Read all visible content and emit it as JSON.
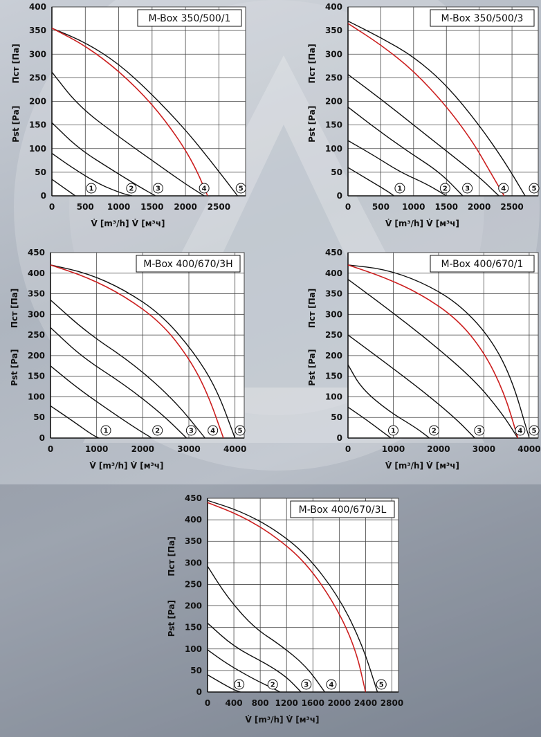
{
  "colors": {
    "curve": "#111111",
    "highlight_curve": "#cc1f1f",
    "plot_bg": "#ffffff",
    "grid": "#444444"
  },
  "chart_data": [
    {
      "type": "line",
      "title": "M-Box 350/500/1",
      "x_ticks": [
        "0",
        "500",
        "1000",
        "1500",
        "2000",
        "2500"
      ],
      "y_ticks": [
        "0",
        "50",
        "100",
        "150",
        "200",
        "250",
        "300",
        "350",
        "400"
      ],
      "xlabel": "V̇ [m³/h]  V̇ [м³ч]",
      "ylabel_left": "Pst [Pa]",
      "ylabel_right": "Пст [Па]",
      "xlim": [
        0,
        2900
      ],
      "ylim": [
        0,
        400
      ],
      "series": [
        {
          "name": "1",
          "points": [
            [
              0,
              35
            ],
            [
              350,
              0
            ]
          ]
        },
        {
          "name": "2",
          "points": [
            [
              0,
              90
            ],
            [
              300,
              60
            ],
            [
              700,
              25
            ],
            [
              1050,
              5
            ],
            [
              1200,
              0
            ]
          ]
        },
        {
          "name": "3",
          "points": [
            [
              0,
              155
            ],
            [
              400,
              100
            ],
            [
              900,
              55
            ],
            [
              1300,
              20
            ],
            [
              1550,
              0
            ]
          ]
        },
        {
          "name": "4",
          "points": [
            [
              0,
              262
            ],
            [
              400,
              190
            ],
            [
              1000,
              125
            ],
            [
              1600,
              65
            ],
            [
              2000,
              25
            ],
            [
              2280,
              0
            ]
          ]
        },
        {
          "name": "5",
          "points": [
            [
              0,
              355
            ],
            [
              500,
              325
            ],
            [
              1000,
              280
            ],
            [
              1500,
              215
            ],
            [
              2000,
              140
            ],
            [
              2400,
              70
            ],
            [
              2780,
              0
            ]
          ]
        },
        {
          "name": "",
          "highlight": true,
          "points": [
            [
              0,
              355
            ],
            [
              500,
              318
            ],
            [
              1000,
              265
            ],
            [
              1500,
              195
            ],
            [
              1900,
              120
            ],
            [
              2150,
              60
            ],
            [
              2330,
              0
            ]
          ]
        }
      ],
      "curve_labels": [
        {
          "n": "1",
          "x": 590
        },
        {
          "n": "2",
          "x": 1190
        },
        {
          "n": "3",
          "x": 1590
        },
        {
          "n": "4",
          "x": 2280
        },
        {
          "n": "5",
          "x": 2830
        }
      ]
    },
    {
      "type": "line",
      "title": "M-Box 350/500/3",
      "x_ticks": [
        "0",
        "500",
        "1000",
        "1500",
        "2000",
        "2500"
      ],
      "y_ticks": [
        "0",
        "50",
        "100",
        "150",
        "200",
        "250",
        "300",
        "350",
        "400"
      ],
      "xlabel": "V̇ [m³/h]  V̇ [м³ч]",
      "ylabel_left": "Pst [Pa]",
      "ylabel_right": "Пст [Па]",
      "xlim": [
        0,
        2900
      ],
      "ylim": [
        0,
        400
      ],
      "series": [
        {
          "name": "1",
          "points": [
            [
              0,
              60
            ],
            [
              300,
              35
            ],
            [
              600,
              10
            ],
            [
              700,
              0
            ]
          ]
        },
        {
          "name": "2",
          "points": [
            [
              0,
              117
            ],
            [
              400,
              85
            ],
            [
              800,
              50
            ],
            [
              1200,
              25
            ],
            [
              1500,
              0
            ]
          ]
        },
        {
          "name": "3",
          "points": [
            [
              0,
              188
            ],
            [
              400,
              145
            ],
            [
              900,
              95
            ],
            [
              1400,
              50
            ],
            [
              1750,
              0
            ]
          ]
        },
        {
          "name": "4",
          "points": [
            [
              0,
              257
            ],
            [
              500,
              205
            ],
            [
              1000,
              150
            ],
            [
              1500,
              95
            ],
            [
              2000,
              40
            ],
            [
              2300,
              0
            ]
          ]
        },
        {
          "name": "5",
          "points": [
            [
              0,
              370
            ],
            [
              500,
              335
            ],
            [
              1000,
              295
            ],
            [
              1500,
              235
            ],
            [
              2000,
              150
            ],
            [
              2400,
              70
            ],
            [
              2700,
              0
            ]
          ]
        },
        {
          "name": "",
          "highlight": true,
          "points": [
            [
              0,
              365
            ],
            [
              500,
              320
            ],
            [
              1000,
              265
            ],
            [
              1500,
              190
            ],
            [
              1900,
              115
            ],
            [
              2150,
              55
            ],
            [
              2380,
              0
            ]
          ]
        }
      ],
      "curve_labels": [
        {
          "n": "1",
          "x": 790
        },
        {
          "n": "2",
          "x": 1480
        },
        {
          "n": "3",
          "x": 1820
        },
        {
          "n": "4",
          "x": 2370
        },
        {
          "n": "5",
          "x": 2850
        }
      ]
    },
    {
      "type": "line",
      "title": "M-Box 400/670/3H",
      "x_ticks": [
        "0",
        "1000",
        "2000",
        "3000",
        "4000"
      ],
      "y_ticks": [
        "0",
        "50",
        "100",
        "150",
        "200",
        "250",
        "300",
        "350",
        "400",
        "450"
      ],
      "xlabel": "V̇ [m³/h]  V̇ [м³ч]",
      "ylabel_left": "Pst [Pa]",
      "ylabel_right": "Пст [Па]",
      "xlim": [
        0,
        4200
      ],
      "ylim": [
        0,
        450
      ],
      "series": [
        {
          "name": "1",
          "points": [
            [
              0,
              78
            ],
            [
              500,
              40
            ],
            [
              900,
              8
            ],
            [
              1050,
              0
            ]
          ]
        },
        {
          "name": "2",
          "points": [
            [
              0,
              175
            ],
            [
              600,
              120
            ],
            [
              1300,
              65
            ],
            [
              1900,
              20
            ],
            [
              2200,
              0
            ]
          ]
        },
        {
          "name": "3",
          "points": [
            [
              0,
              268
            ],
            [
              700,
              195
            ],
            [
              1600,
              130
            ],
            [
              2400,
              60
            ],
            [
              2950,
              0
            ]
          ]
        },
        {
          "name": "4",
          "points": [
            [
              0,
              335
            ],
            [
              800,
              255
            ],
            [
              1800,
              180
            ],
            [
              2700,
              90
            ],
            [
              3350,
              0
            ]
          ]
        },
        {
          "name": "5",
          "points": [
            [
              0,
              420
            ],
            [
              800,
              400
            ],
            [
              1600,
              360
            ],
            [
              2400,
              300
            ],
            [
              3100,
              210
            ],
            [
              3600,
              120
            ],
            [
              4000,
              0
            ]
          ]
        },
        {
          "name": "",
          "highlight": true,
          "points": [
            [
              0,
              420
            ],
            [
              800,
              390
            ],
            [
              1600,
              345
            ],
            [
              2400,
              280
            ],
            [
              3000,
              195
            ],
            [
              3400,
              110
            ],
            [
              3750,
              0
            ]
          ]
        }
      ],
      "curve_labels": [
        {
          "n": "1",
          "x": 1200
        },
        {
          "n": "2",
          "x": 2320
        },
        {
          "n": "3",
          "x": 3050
        },
        {
          "n": "4",
          "x": 3520
        },
        {
          "n": "5",
          "x": 4170
        }
      ]
    },
    {
      "type": "line",
      "title": "M-Box 400/670/1",
      "x_ticks": [
        "0",
        "1000",
        "2000",
        "3000",
        "4000"
      ],
      "y_ticks": [
        "0",
        "50",
        "100",
        "150",
        "200",
        "250",
        "300",
        "350",
        "400",
        "450"
      ],
      "xlabel": "V̇ [m³/h]  V̇ [м³ч]",
      "ylabel_left": "Pst [Pa]",
      "ylabel_right": "Пст [Па]",
      "xlim": [
        0,
        4200
      ],
      "ylim": [
        0,
        450
      ],
      "series": [
        {
          "name": "1",
          "points": [
            [
              0,
              75
            ],
            [
              400,
              45
            ],
            [
              800,
              12
            ],
            [
              950,
              0
            ]
          ]
        },
        {
          "name": "2",
          "points": [
            [
              0,
              178
            ],
            [
              300,
              120
            ],
            [
              900,
              65
            ],
            [
              1500,
              25
            ],
            [
              1800,
              0
            ]
          ]
        },
        {
          "name": "3",
          "points": [
            [
              0,
              250
            ],
            [
              800,
              185
            ],
            [
              1700,
              110
            ],
            [
              2400,
              45
            ],
            [
              2800,
              0
            ]
          ]
        },
        {
          "name": "4",
          "points": [
            [
              0,
              385
            ],
            [
              800,
              320
            ],
            [
              1800,
              235
            ],
            [
              2800,
              140
            ],
            [
              3400,
              60
            ],
            [
              3750,
              0
            ]
          ]
        },
        {
          "name": "5",
          "points": [
            [
              0,
              420
            ],
            [
              800,
              410
            ],
            [
              1600,
              380
            ],
            [
              2400,
              330
            ],
            [
              3100,
              250
            ],
            [
              3600,
              150
            ],
            [
              4000,
              0
            ]
          ]
        },
        {
          "name": "",
          "highlight": true,
          "points": [
            [
              0,
              420
            ],
            [
              800,
              390
            ],
            [
              1600,
              350
            ],
            [
              2400,
              290
            ],
            [
              3000,
              210
            ],
            [
              3450,
              110
            ],
            [
              3750,
              0
            ]
          ]
        }
      ],
      "curve_labels": [
        {
          "n": "1",
          "x": 1000
        },
        {
          "n": "2",
          "x": 1900
        },
        {
          "n": "3",
          "x": 2900
        },
        {
          "n": "4",
          "x": 3800
        },
        {
          "n": "5",
          "x": 4200
        }
      ]
    },
    {
      "type": "line",
      "title": "M-Box 400/670/3L",
      "x_ticks": [
        "0",
        "400",
        "800",
        "1200",
        "1600",
        "2000",
        "2400",
        "2800"
      ],
      "y_ticks": [
        "0",
        "50",
        "100",
        "150",
        "200",
        "250",
        "300",
        "350",
        "400",
        "450"
      ],
      "xlabel": "V̇ [m³/h]  V̇ [м³ч]",
      "ylabel_left": "Pst [Pa]",
      "ylabel_right": "Пст [Па]",
      "xlim": [
        0,
        2900
      ],
      "ylim": [
        0,
        450
      ],
      "series": [
        {
          "name": "1",
          "points": [
            [
              0,
              40
            ],
            [
              200,
              22
            ],
            [
              400,
              5
            ],
            [
              500,
              0
            ]
          ]
        },
        {
          "name": "2",
          "points": [
            [
              0,
              98
            ],
            [
              300,
              65
            ],
            [
              700,
              30
            ],
            [
              1000,
              8
            ],
            [
              1100,
              0
            ]
          ]
        },
        {
          "name": "3",
          "points": [
            [
              0,
              160
            ],
            [
              400,
              105
            ],
            [
              900,
              65
            ],
            [
              1200,
              35
            ],
            [
              1420,
              0
            ]
          ]
        },
        {
          "name": "4",
          "points": [
            [
              0,
              292
            ],
            [
              300,
              220
            ],
            [
              700,
              150
            ],
            [
              1100,
              110
            ],
            [
              1500,
              60
            ],
            [
              1780,
              0
            ]
          ]
        },
        {
          "name": "5",
          "points": [
            [
              0,
              445
            ],
            [
              500,
              420
            ],
            [
              1000,
              380
            ],
            [
              1500,
              320
            ],
            [
              2000,
              220
            ],
            [
              2350,
              110
            ],
            [
              2580,
              0
            ]
          ]
        },
        {
          "name": "",
          "highlight": true,
          "points": [
            [
              0,
              440
            ],
            [
              500,
              410
            ],
            [
              1000,
              365
            ],
            [
              1500,
              300
            ],
            [
              1950,
              200
            ],
            [
              2250,
              100
            ],
            [
              2400,
              0
            ]
          ]
        }
      ],
      "curve_labels": [
        {
          "n": "1",
          "x": 480
        },
        {
          "n": "2",
          "x": 990
        },
        {
          "n": "3",
          "x": 1500
        },
        {
          "n": "4",
          "x": 1880
        },
        {
          "n": "5",
          "x": 2640
        }
      ]
    }
  ]
}
